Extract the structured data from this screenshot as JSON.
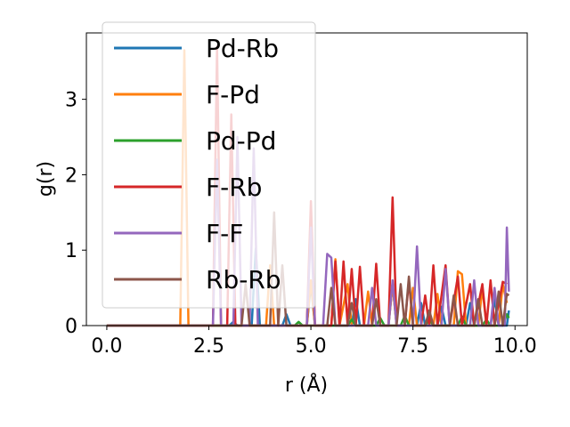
{
  "chart_data": {
    "type": "line",
    "title": "",
    "xlabel": "r (Å)",
    "ylabel": "g(r)",
    "xlim": [
      -0.5,
      10.3
    ],
    "ylim": [
      0,
      3.88
    ],
    "xticks": [
      0.0,
      2.5,
      5.0,
      7.5,
      10.0
    ],
    "xtick_labels": [
      "0.0",
      "2.5",
      "5.0",
      "7.5",
      "10.0"
    ],
    "yticks": [
      0,
      1,
      2,
      3
    ],
    "ytick_labels": [
      "0",
      "1",
      "2",
      "3"
    ],
    "grid": false,
    "legend_position": "upper left",
    "series": [
      {
        "name": "Pd-Rb",
        "color": "#1f77b4",
        "points": [
          [
            0,
            0
          ],
          [
            3.0,
            0
          ],
          [
            3.1,
            0.05
          ],
          [
            3.2,
            0
          ],
          [
            3.55,
            0
          ],
          [
            3.65,
            1.02
          ],
          [
            3.75,
            0
          ],
          [
            4.3,
            0
          ],
          [
            4.4,
            0.15
          ],
          [
            4.5,
            0
          ],
          [
            4.9,
            0
          ],
          [
            5.0,
            0.55
          ],
          [
            5.1,
            0
          ],
          [
            6.0,
            0
          ],
          [
            6.1,
            0.35
          ],
          [
            6.2,
            0
          ],
          [
            6.9,
            0
          ],
          [
            7.0,
            0.55
          ],
          [
            7.1,
            0
          ],
          [
            7.6,
            0
          ],
          [
            7.7,
            0.3
          ],
          [
            7.8,
            0
          ],
          [
            8.1,
            0
          ],
          [
            8.2,
            0.25
          ],
          [
            8.3,
            0
          ],
          [
            8.8,
            0
          ],
          [
            8.9,
            0.3
          ],
          [
            9.0,
            0
          ],
          [
            9.4,
            0
          ],
          [
            9.5,
            0.35
          ],
          [
            9.6,
            0
          ],
          [
            9.8,
            0
          ],
          [
            9.85,
            0.2
          ]
        ]
      },
      {
        "name": "F-Pd",
        "color": "#ff7f0e",
        "points": [
          [
            0,
            0
          ],
          [
            1.8,
            0
          ],
          [
            1.9,
            3.65
          ],
          [
            2.0,
            0
          ],
          [
            3.9,
            0
          ],
          [
            4.0,
            0.8
          ],
          [
            4.1,
            0
          ],
          [
            4.9,
            0
          ],
          [
            5.0,
            0.6
          ],
          [
            5.1,
            0
          ],
          [
            5.5,
            0
          ],
          [
            5.6,
            0.88
          ],
          [
            5.7,
            0
          ],
          [
            5.9,
            0.55
          ],
          [
            6.0,
            0
          ],
          [
            6.3,
            0
          ],
          [
            6.4,
            0.45
          ],
          [
            6.5,
            0
          ],
          [
            6.9,
            0
          ],
          [
            7.0,
            0.55
          ],
          [
            7.1,
            0
          ],
          [
            7.4,
            0
          ],
          [
            7.5,
            0.5
          ],
          [
            7.6,
            0
          ],
          [
            8.0,
            0
          ],
          [
            8.1,
            0.42
          ],
          [
            8.2,
            0
          ],
          [
            8.5,
            0
          ],
          [
            8.6,
            0.72
          ],
          [
            8.7,
            0.68
          ],
          [
            8.8,
            0
          ],
          [
            9.1,
            0
          ],
          [
            9.2,
            0.5
          ],
          [
            9.3,
            0
          ],
          [
            9.6,
            0
          ],
          [
            9.7,
            0.55
          ],
          [
            9.8,
            0.3
          ]
        ]
      },
      {
        "name": "Pd-Pd",
        "color": "#2ca02c",
        "points": [
          [
            0,
            0
          ],
          [
            4.6,
            0
          ],
          [
            4.7,
            0.05
          ],
          [
            4.8,
            0
          ],
          [
            5.9,
            0
          ],
          [
            6.0,
            0.08
          ],
          [
            6.1,
            0
          ],
          [
            6.6,
            0
          ],
          [
            6.7,
            0.1
          ],
          [
            6.8,
            0
          ],
          [
            7.2,
            0
          ],
          [
            7.3,
            0.13
          ],
          [
            7.4,
            0
          ],
          [
            7.8,
            0
          ],
          [
            7.9,
            0.08
          ],
          [
            8.0,
            0
          ],
          [
            8.6,
            0
          ],
          [
            8.7,
            0.12
          ],
          [
            8.8,
            0
          ],
          [
            9.2,
            0
          ],
          [
            9.3,
            0.08
          ],
          [
            9.4,
            0
          ],
          [
            9.7,
            0
          ],
          [
            9.8,
            0.15
          ],
          [
            9.85,
            0.1
          ]
        ]
      },
      {
        "name": "F-Rb",
        "color": "#d62728",
        "points": [
          [
            0,
            0
          ],
          [
            2.6,
            0
          ],
          [
            2.7,
            3.7
          ],
          [
            2.8,
            0
          ],
          [
            2.95,
            0
          ],
          [
            3.05,
            2.8
          ],
          [
            3.15,
            0
          ],
          [
            4.9,
            0
          ],
          [
            5.0,
            1.65
          ],
          [
            5.1,
            0
          ],
          [
            5.5,
            0
          ],
          [
            5.6,
            0.85
          ],
          [
            5.7,
            0
          ],
          [
            5.8,
            0.85
          ],
          [
            5.9,
            0
          ],
          [
            6.0,
            0.75
          ],
          [
            6.1,
            0
          ],
          [
            6.2,
            0.78
          ],
          [
            6.3,
            0
          ],
          [
            6.5,
            0
          ],
          [
            6.6,
            0.82
          ],
          [
            6.7,
            0
          ],
          [
            6.9,
            0
          ],
          [
            7.0,
            1.7
          ],
          [
            7.1,
            0
          ],
          [
            7.3,
            0
          ],
          [
            7.4,
            0.6
          ],
          [
            7.5,
            0
          ],
          [
            7.7,
            0
          ],
          [
            7.8,
            0.4
          ],
          [
            7.9,
            0
          ],
          [
            8.0,
            0.8
          ],
          [
            8.1,
            0
          ],
          [
            8.3,
            0.8
          ],
          [
            8.4,
            0
          ],
          [
            8.6,
            0.65
          ],
          [
            8.7,
            0
          ],
          [
            8.9,
            0.55
          ],
          [
            9.0,
            0
          ],
          [
            9.2,
            0.55
          ],
          [
            9.3,
            0
          ],
          [
            9.4,
            0.6
          ],
          [
            9.5,
            0
          ],
          [
            9.7,
            0.58
          ],
          [
            9.8,
            0.55
          ]
        ]
      },
      {
        "name": "F-F",
        "color": "#9467bd",
        "points": [
          [
            0,
            0
          ],
          [
            2.6,
            0
          ],
          [
            2.7,
            2.2
          ],
          [
            2.8,
            0
          ],
          [
            3.1,
            0
          ],
          [
            3.2,
            2.5
          ],
          [
            3.3,
            0
          ],
          [
            3.5,
            0
          ],
          [
            3.6,
            2.35
          ],
          [
            3.7,
            0
          ],
          [
            4.9,
            0
          ],
          [
            5.0,
            1.3
          ],
          [
            5.1,
            0
          ],
          [
            5.3,
            0
          ],
          [
            5.4,
            0.95
          ],
          [
            5.5,
            0.9
          ],
          [
            5.6,
            0
          ],
          [
            6.4,
            0
          ],
          [
            6.5,
            0.5
          ],
          [
            6.6,
            0
          ],
          [
            6.9,
            0
          ],
          [
            7.0,
            0.6
          ],
          [
            7.1,
            0
          ],
          [
            7.5,
            0
          ],
          [
            7.6,
            1.05
          ],
          [
            7.7,
            0
          ],
          [
            8.2,
            0
          ],
          [
            8.3,
            0.75
          ],
          [
            8.4,
            0
          ],
          [
            8.9,
            0
          ],
          [
            9.0,
            0.6
          ],
          [
            9.1,
            0
          ],
          [
            9.4,
            0
          ],
          [
            9.5,
            0.5
          ],
          [
            9.6,
            0
          ],
          [
            9.75,
            0
          ],
          [
            9.8,
            1.3
          ],
          [
            9.85,
            0.45
          ]
        ]
      },
      {
        "name": "Rb-Rb",
        "color": "#8c564b",
        "points": [
          [
            0,
            0
          ],
          [
            3.3,
            0
          ],
          [
            3.4,
            0.55
          ],
          [
            3.5,
            0
          ],
          [
            4.0,
            0
          ],
          [
            4.1,
            1.5
          ],
          [
            4.2,
            0
          ],
          [
            4.3,
            0.8
          ],
          [
            4.4,
            0
          ],
          [
            5.4,
            0
          ],
          [
            5.5,
            0.5
          ],
          [
            5.6,
            0
          ],
          [
            5.9,
            0
          ],
          [
            6.0,
            0.3
          ],
          [
            6.1,
            0
          ],
          [
            6.5,
            0
          ],
          [
            6.6,
            0.35
          ],
          [
            6.7,
            0
          ],
          [
            7.1,
            0
          ],
          [
            7.2,
            0.55
          ],
          [
            7.3,
            0
          ],
          [
            7.4,
            0.65
          ],
          [
            7.5,
            0
          ],
          [
            7.8,
            0
          ],
          [
            7.9,
            0.2
          ],
          [
            8.0,
            0
          ],
          [
            8.4,
            0
          ],
          [
            8.5,
            0.4
          ],
          [
            8.6,
            0
          ],
          [
            9.0,
            0
          ],
          [
            9.1,
            0.35
          ],
          [
            9.2,
            0
          ],
          [
            9.5,
            0
          ],
          [
            9.6,
            0.45
          ],
          [
            9.7,
            0
          ],
          [
            9.8,
            0.42
          ],
          [
            9.85,
            0.4
          ]
        ]
      }
    ]
  }
}
